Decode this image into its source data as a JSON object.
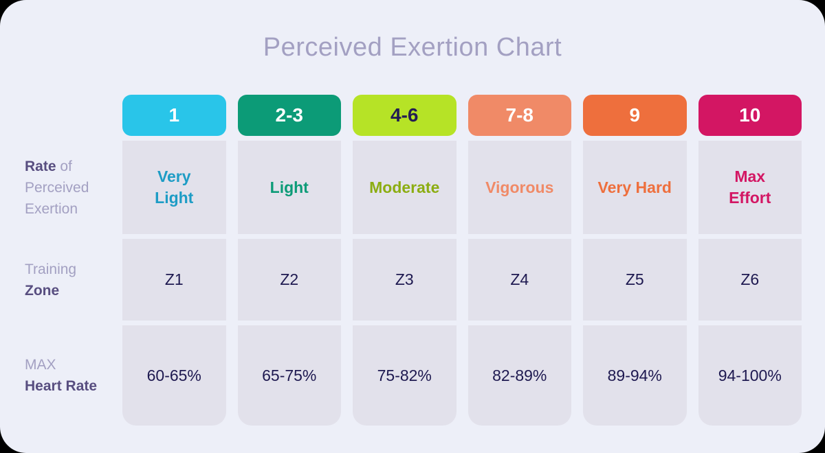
{
  "title": "Perceived Exertion Chart",
  "colors": {
    "page_background": "#edeff8",
    "cell_background": "#e2e1eb",
    "title_text": "#a3a0c2",
    "label_light": "#a3a0c2",
    "label_bold": "#584e80",
    "value_text": "#1e1950"
  },
  "side_labels": [
    {
      "bold": "Rate",
      "light": "of Perceived Exertion"
    },
    {
      "light": "Training",
      "bold": "Zone"
    },
    {
      "light": "MAX",
      "bold": "Heart Rate"
    }
  ],
  "columns": [
    {
      "pill": "1",
      "pill_bg": "#29c5e9",
      "pill_fg": "#ffffff",
      "label": "Very\nLight",
      "label_color": "#1d9cc5",
      "zone": "Z1",
      "heart_rate": "60-65%"
    },
    {
      "pill": "2-3",
      "pill_bg": "#0c9b77",
      "pill_fg": "#ffffff",
      "label": "Light",
      "label_color": "#0c9b77",
      "zone": "Z2",
      "heart_rate": "65-75%"
    },
    {
      "pill": "4-6",
      "pill_bg": "#b6e326",
      "pill_fg": "#241d53",
      "label": "Moderate",
      "label_color": "#8cad12",
      "zone": "Z3",
      "heart_rate": "75-82%"
    },
    {
      "pill": "7-8",
      "pill_bg": "#f08a67",
      "pill_fg": "#ffffff",
      "label": "Vigorous",
      "label_color": "#f08a67",
      "zone": "Z4",
      "heart_rate": "82-89%"
    },
    {
      "pill": "9",
      "pill_bg": "#ee6f3d",
      "pill_fg": "#ffffff",
      "label": "Very Hard",
      "label_color": "#ee6f3d",
      "zone": "Z5",
      "heart_rate": "89-94%"
    },
    {
      "pill": "10",
      "pill_bg": "#d31663",
      "pill_fg": "#ffffff",
      "label": "Max\nEffort",
      "label_color": "#d31663",
      "zone": "Z6",
      "heart_rate": "94-100%"
    }
  ],
  "chart_data": {
    "type": "table",
    "title": "Perceived Exertion Chart",
    "columns": [
      "1",
      "2-3",
      "4-6",
      "7-8",
      "9",
      "10"
    ],
    "rows": [
      {
        "label": "Rate of Perceived Exertion",
        "values": [
          "Very Light",
          "Light",
          "Moderate",
          "Vigorous",
          "Very Hard",
          "Max Effort"
        ]
      },
      {
        "label": "Training Zone",
        "values": [
          "Z1",
          "Z2",
          "Z3",
          "Z4",
          "Z5",
          "Z6"
        ]
      },
      {
        "label": "MAX Heart Rate",
        "values": [
          "60-65%",
          "65-75%",
          "75-82%",
          "82-89%",
          "89-94%",
          "94-100%"
        ]
      }
    ],
    "legend_position": "none",
    "grid": false
  }
}
